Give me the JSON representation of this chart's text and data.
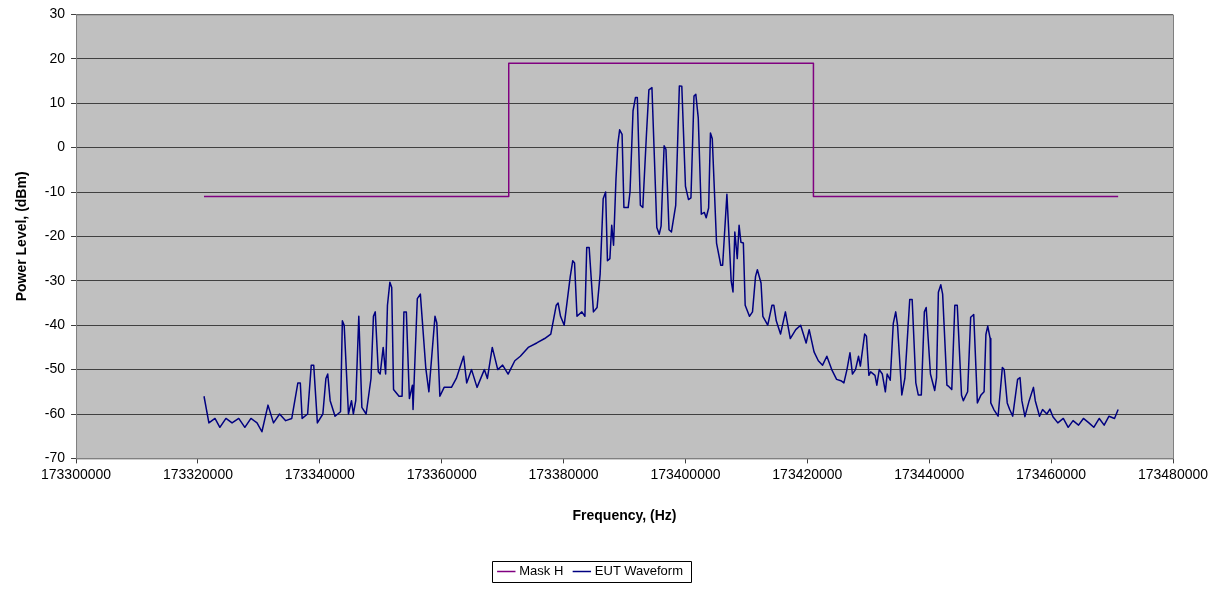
{
  "chart_data": {
    "type": "line",
    "xlabel": "Frequency, (Hz)",
    "ylabel": "Power Level, (dBm)",
    "xlim": [
      173300000,
      173480000
    ],
    "xticks": [
      173300000,
      173320000,
      173340000,
      173360000,
      173380000,
      173400000,
      173420000,
      173440000,
      173460000,
      173480000
    ],
    "ylim": [
      -70,
      30
    ],
    "yticks": [
      -70,
      -60,
      -50,
      -40,
      -30,
      -20,
      -10,
      0,
      10,
      20,
      30
    ],
    "grid": "y",
    "legend": "bottom",
    "marker": "none",
    "series": [
      {
        "name": "Mask H",
        "color": "#800080",
        "x": [
          173321000,
          173371000,
          173371000,
          173421000,
          173421000,
          173471000
        ],
        "values": [
          -11,
          -11,
          19,
          19,
          -11,
          -11
        ]
      },
      {
        "name": "EUT Waveform",
        "color": "#000080",
        "x": [
          173321000,
          173321800,
          173322800,
          173323600,
          173324600,
          173325600,
          173326700,
          173327700,
          173328700,
          173329700,
          173330500,
          173331500,
          173332400,
          173333400,
          173334400,
          173335400,
          173336400,
          173336800,
          173337100,
          173338000,
          173338600,
          173339000,
          173339600,
          173340500,
          173341000,
          173341300,
          173341700,
          173342500,
          173343400,
          173343700,
          173344000,
          173344700,
          173345200,
          173345500,
          173345900,
          173346400,
          173346900,
          173347600,
          173348400,
          173348800,
          173349100,
          173349600,
          173349900,
          173350400,
          173350800,
          173351100,
          173351500,
          173351800,
          173352100,
          173353000,
          173353500,
          173353800,
          173354200,
          173354700,
          173355200,
          173355300,
          173356000,
          173356500,
          173357400,
          173357900,
          173358900,
          173359200,
          173359700,
          173360400,
          173361600,
          173362400,
          173363600,
          173364100,
          173364900,
          173365800,
          173367000,
          173367500,
          173368300,
          173369200,
          173370000,
          173370900,
          173372000,
          173372900,
          173374200,
          173375600,
          173376900,
          173377900,
          173378800,
          173379100,
          173379500,
          173380100,
          173381100,
          173381500,
          173381800,
          173382200,
          173383000,
          173383500,
          173383800,
          173384200,
          173384900,
          173385500,
          173386000,
          173386500,
          173386900,
          173387200,
          173387600,
          173387900,
          173388200,
          173388600,
          173388900,
          173389200,
          173389600,
          173389900,
          173390600,
          173390900,
          173391400,
          173391800,
          173392100,
          173392600,
          173393000,
          173393600,
          173394000,
          173394500,
          173395300,
          173395700,
          173396000,
          173396500,
          173396800,
          173397300,
          173397700,
          173398400,
          173399000,
          173399400,
          173400000,
          173400500,
          173400900,
          173401400,
          173401700,
          173402100,
          173402600,
          173403100,
          173403400,
          173403800,
          173404100,
          173404400,
          173405100,
          173405800,
          173406100,
          173406800,
          173407500,
          173407800,
          173408100,
          173408500,
          173408800,
          173409100,
          173409500,
          173409800,
          173410500,
          173411000,
          173411500,
          173411800,
          173412400,
          173412700,
          173413500,
          173414200,
          173414500,
          173414900,
          173415600,
          173416400,
          173417200,
          173418100,
          173418900,
          173419800,
          173420300,
          173421100,
          173421800,
          173422500,
          173423200,
          173424000,
          173424800,
          173425500,
          173426000,
          173426500,
          173427000,
          173427400,
          173427900,
          173428400,
          173428700,
          173429400,
          173429700,
          173430100,
          173430400,
          173431100,
          173431400,
          173431800,
          173432300,
          173432800,
          173433100,
          173433600,
          173434100,
          173434500,
          173434800,
          173435500,
          173436000,
          173436300,
          173436800,
          173437200,
          173437800,
          173438200,
          173438700,
          173439200,
          173439500,
          173440200,
          173440900,
          173441200,
          173441500,
          173441900,
          173442200,
          173442900,
          173443200,
          173443700,
          173444200,
          173444600,
          173445300,
          173445600,
          173446300,
          173446800,
          173447300,
          173447900,
          173448500,
          173449000,
          173449300,
          173449600,
          173450000,
          173450100,
          173450600,
          173451300,
          173452000,
          173452300,
          173452800,
          173453200,
          173453700,
          173454500,
          173454900,
          173455200,
          173455700,
          173456400,
          173457100,
          173457400,
          173458100,
          173458600,
          173459300,
          173459800,
          173460300,
          173461100,
          173462000,
          173462800,
          173463600,
          173464500,
          173465300,
          173466200,
          173467000,
          173467900,
          173468700,
          173469500,
          173470400,
          173471000
        ],
        "values": [
          -56,
          -62,
          -61,
          -63,
          -61,
          -62,
          -61,
          -63,
          -61,
          -62,
          -64,
          -58,
          -62,
          -60,
          -61.5,
          -61,
          -53,
          -53,
          -61,
          -60,
          -49,
          -49,
          -62,
          -60,
          -52,
          -51,
          -57,
          -60.5,
          -59.5,
          -39,
          -40,
          -60,
          -57,
          -60,
          -57,
          -38,
          -58.5,
          -60,
          -52,
          -38,
          -37,
          -50.5,
          -51,
          -45,
          -51,
          -35.5,
          -30.3,
          -31.5,
          -54.5,
          -56,
          -56,
          -37,
          -37,
          -56.5,
          -53.5,
          -59,
          -34,
          -33,
          -49.8,
          -55,
          -38,
          -39.5,
          -56,
          -54,
          -54,
          -52,
          -47,
          -53,
          -50,
          -54,
          -50,
          -52,
          -45,
          -50,
          -49,
          -51,
          -48,
          -47,
          -45,
          -44,
          -43,
          -42,
          -35.5,
          -35,
          -38,
          -40,
          -29,
          -25.5,
          -26,
          -38,
          -37,
          -38,
          -22.5,
          -22.5,
          -37,
          -36,
          -28.5,
          -11.5,
          -10,
          -25.5,
          -25,
          -17.5,
          -22,
          -7,
          0.8,
          4,
          3,
          -13.5,
          -13.5,
          -10,
          8.3,
          11.3,
          11.3,
          -13,
          -13.5,
          3,
          13,
          13.5,
          -18,
          -19.5,
          -17.7,
          0.4,
          -0.4,
          -18.5,
          -19,
          -13,
          13.9,
          13.8,
          -8.7,
          -11.7,
          -11.3,
          11.6,
          12,
          6.7,
          -15,
          -14.6,
          -15.8,
          -13.6,
          3.3,
          2,
          -21.5,
          -26.5,
          -26.5,
          -10.5,
          -30,
          -32.5,
          -19,
          -25,
          -17.5,
          -21.3,
          -21.5,
          -35.5,
          -38,
          -37,
          -29,
          -27.5,
          -30.5,
          -38,
          -40,
          -35.5,
          -35.5,
          -39,
          -42,
          -37,
          -43,
          -41,
          -40,
          -44,
          -41,
          -46,
          -48,
          -49,
          -47,
          -50,
          -52.2,
          -52.5,
          -53,
          -50,
          -46.2,
          -51,
          -50,
          -47,
          -49.2,
          -42,
          -42.5,
          -51.3,
          -50.5,
          -51.3,
          -53.5,
          -50,
          -51,
          -55,
          -51,
          -52.4,
          -39.6,
          -37,
          -40,
          -55.7,
          -52,
          -45.5,
          -34.2,
          -34.2,
          -53,
          -55.7,
          -55.7,
          -37,
          -36,
          -51,
          -54.7,
          -51.8,
          -32.6,
          -30.9,
          -33,
          -53.5,
          -53.8,
          -54.5,
          -35.5,
          -35.5,
          -55.8,
          -57,
          -55,
          -38.2,
          -37.6,
          -57.5,
          -55.7,
          -55,
          -42.1,
          -40.2,
          -43,
          -57.5,
          -59,
          -60.5,
          -49.5,
          -50,
          -57.5,
          -59,
          -60.5,
          -52.2,
          -51.8,
          -57,
          -60.6,
          -57,
          -54,
          -57,
          -60.5,
          -59,
          -60,
          -58.9,
          -60.6,
          -62,
          -61,
          -63,
          -61.5,
          -62.5,
          -61,
          -62,
          -63,
          -61,
          -62.5,
          -60.5,
          -61,
          -59
        ]
      }
    ]
  }
}
